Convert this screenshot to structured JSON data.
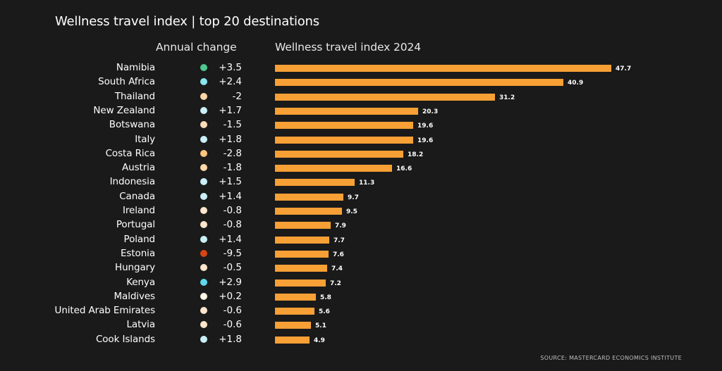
{
  "chart_data": {
    "type": "bar",
    "orientation": "horizontal",
    "title": "Wellness travel index | top 20 destinations",
    "change_header": "Annual change",
    "index_header": "Wellness travel index 2024",
    "source": "SOURCE: MASTERCARD ECONOMICS INSTITUTE",
    "categories": [
      "Namibia",
      "South Africa",
      "Thailand",
      "New Zealand",
      "Botswana",
      "Italy",
      "Costa Rica",
      "Austria",
      "Indonesia",
      "Canada",
      "Ireland",
      "Portugal",
      "Poland",
      "Estonia",
      "Hungary",
      "Kenya",
      "Maldives",
      "United Arab Emirates",
      "Latvia",
      "Cook Islands"
    ],
    "values": [
      47.7,
      40.9,
      31.2,
      20.3,
      19.6,
      19.6,
      18.2,
      16.6,
      11.3,
      9.7,
      9.5,
      7.9,
      7.7,
      7.6,
      7.4,
      7.2,
      5.8,
      5.6,
      5.1,
      4.9
    ],
    "value_labels": [
      "47.7",
      "40.9",
      "31.2",
      "20.3",
      "19.6",
      "19.6",
      "18.2",
      "16.6",
      "11.3",
      "9.7",
      "9.5",
      "7.9",
      "7.7",
      "7.6",
      "7.4",
      "7.2",
      "5.8",
      "5.6",
      "5.1",
      "4.9"
    ],
    "annual_change": [
      "+3.5",
      "+2.4",
      "-2",
      "+1.7",
      "-1.5",
      "+1.8",
      "-2.8",
      "-1.8",
      "+1.5",
      "+1.4",
      "-0.8",
      "-0.8",
      "+1.4",
      "-9.5",
      "-0.5",
      "+2.9",
      "+0.2",
      "-0.6",
      "-0.6",
      "+1.8"
    ],
    "dot_colors": [
      "#4dc98f",
      "#8be6f0",
      "#fbd6aa",
      "#c8f0f6",
      "#fbdcb8",
      "#c8f0f6",
      "#fbc57f",
      "#fbd6aa",
      "#c8f0f6",
      "#c8f0f6",
      "#fde6cc",
      "#fde6cc",
      "#c8f0f6",
      "#d64512",
      "#fde6cc",
      "#5fd8ec",
      "#fff3e6",
      "#fde6cc",
      "#fde6cc",
      "#c8f0f6"
    ],
    "bar_color": "#f7a035",
    "xlim": [
      0,
      50
    ]
  }
}
